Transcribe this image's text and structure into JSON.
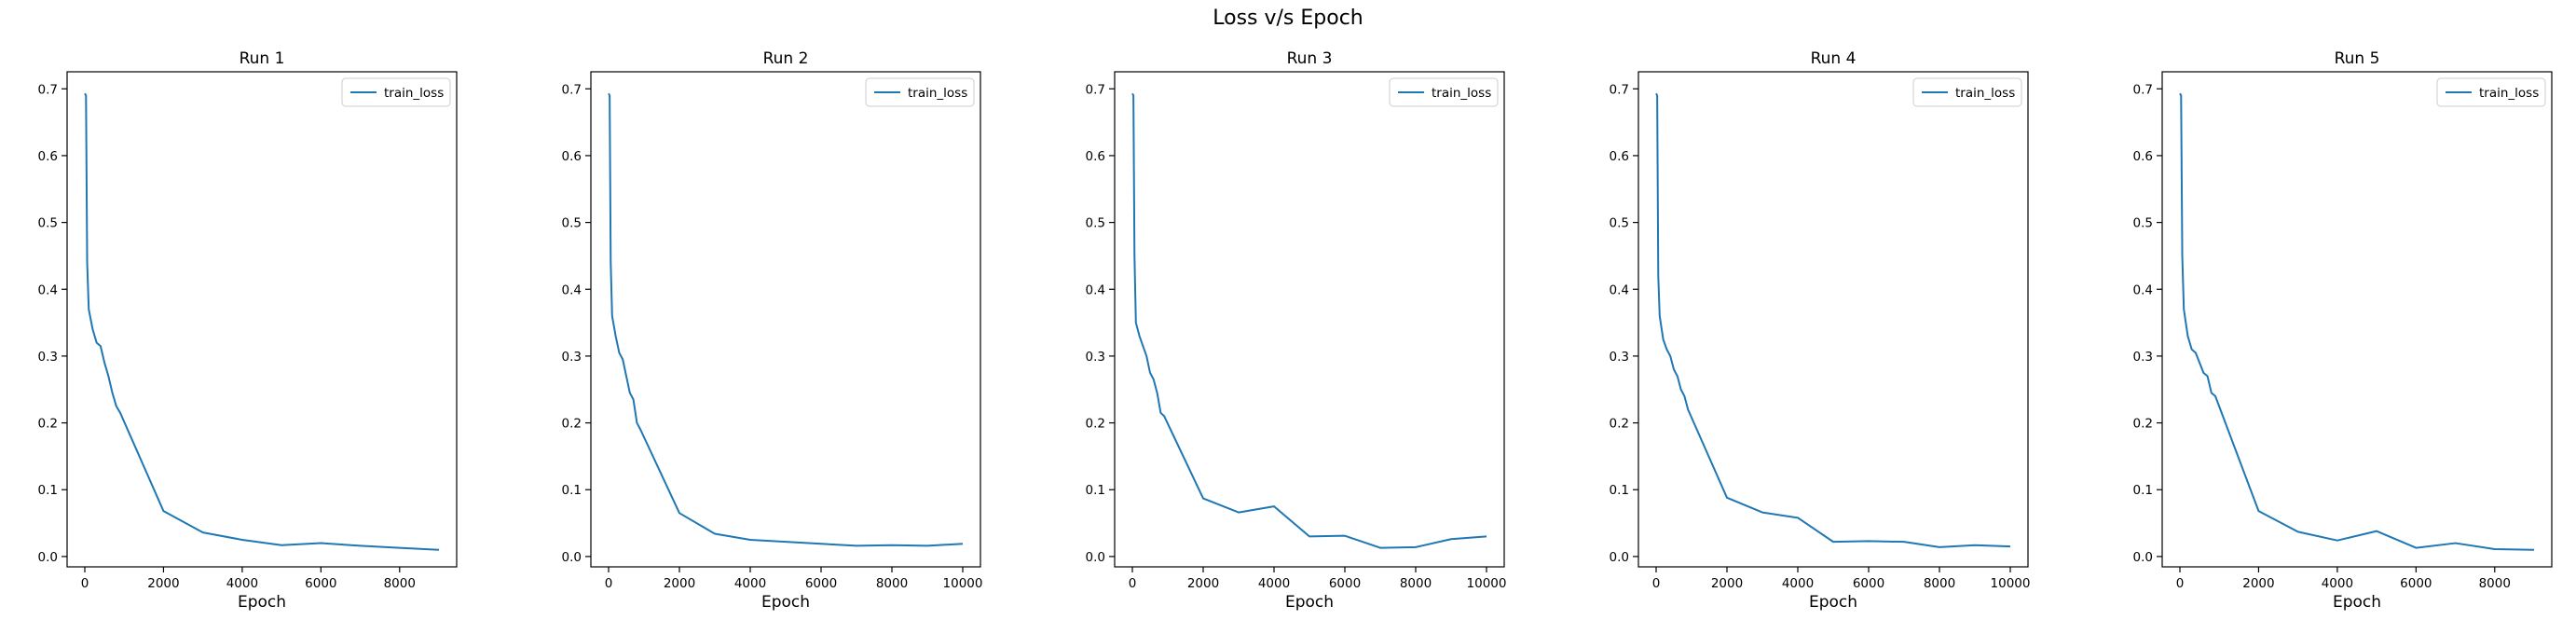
{
  "figure": {
    "title": "Loss v/s Epoch"
  },
  "colors": {
    "series": "#1f77b4",
    "axes": "#000000",
    "legend_border": "#cccccc"
  },
  "chart_data": [
    {
      "type": "line",
      "title": "Run 1",
      "xlabel": "Epoch",
      "ylabel": "",
      "xlim": [
        -450,
        9450
      ],
      "ylim": [
        -0.0155,
        0.7255
      ],
      "xticks": [
        0,
        2000,
        4000,
        6000,
        8000
      ],
      "yticks": [
        0.0,
        0.1,
        0.2,
        0.3,
        0.4,
        0.5,
        0.6,
        0.7
      ],
      "xtick_labels": [
        "0",
        "2000",
        "4000",
        "6000",
        "8000"
      ],
      "ytick_labels": [
        "0.0",
        "0.1",
        "0.2",
        "0.3",
        "0.4",
        "0.5",
        "0.6",
        "0.7"
      ],
      "grid": false,
      "legend": "top-right",
      "series": [
        {
          "name": "train_loss",
          "x": [
            0,
            30,
            60,
            100,
            200,
            300,
            400,
            500,
            600,
            700,
            800,
            900,
            2000,
            3000,
            4000,
            5000,
            6000,
            7000,
            8000,
            9000
          ],
          "y": [
            0.693,
            0.69,
            0.44,
            0.37,
            0.34,
            0.32,
            0.315,
            0.29,
            0.27,
            0.245,
            0.225,
            0.215,
            0.068,
            0.036,
            0.025,
            0.017,
            0.02,
            0.016,
            0.013,
            0.01
          ]
        }
      ]
    },
    {
      "type": "line",
      "title": "Run 2",
      "xlabel": "Epoch",
      "ylabel": "",
      "xlim": [
        -500,
        10500
      ],
      "ylim": [
        -0.0155,
        0.7255
      ],
      "xticks": [
        0,
        2000,
        4000,
        6000,
        8000,
        10000
      ],
      "yticks": [
        0.0,
        0.1,
        0.2,
        0.3,
        0.4,
        0.5,
        0.6,
        0.7
      ],
      "xtick_labels": [
        "0",
        "2000",
        "4000",
        "6000",
        "8000",
        "10000"
      ],
      "ytick_labels": [
        "0.0",
        "0.1",
        "0.2",
        "0.3",
        "0.4",
        "0.5",
        "0.6",
        "0.7"
      ],
      "grid": false,
      "legend": "top-right",
      "series": [
        {
          "name": "train_loss",
          "x": [
            0,
            30,
            60,
            100,
            200,
            300,
            400,
            500,
            600,
            700,
            800,
            900,
            2000,
            3000,
            4000,
            5000,
            6000,
            7000,
            8000,
            9000,
            10000
          ],
          "y": [
            0.693,
            0.69,
            0.44,
            0.36,
            0.33,
            0.305,
            0.295,
            0.27,
            0.245,
            0.235,
            0.2,
            0.19,
            0.065,
            0.034,
            0.025,
            0.022,
            0.019,
            0.016,
            0.017,
            0.016,
            0.019
          ]
        }
      ]
    },
    {
      "type": "line",
      "title": "Run 3",
      "xlabel": "Epoch",
      "ylabel": "",
      "xlim": [
        -500,
        10500
      ],
      "ylim": [
        -0.0155,
        0.7255
      ],
      "xticks": [
        0,
        2000,
        4000,
        6000,
        8000,
        10000
      ],
      "yticks": [
        0.0,
        0.1,
        0.2,
        0.3,
        0.4,
        0.5,
        0.6,
        0.7
      ],
      "xtick_labels": [
        "0",
        "2000",
        "4000",
        "6000",
        "8000",
        "10000"
      ],
      "ytick_labels": [
        "0.0",
        "0.1",
        "0.2",
        "0.3",
        "0.4",
        "0.5",
        "0.6",
        "0.7"
      ],
      "grid": false,
      "legend": "top-right",
      "series": [
        {
          "name": "train_loss",
          "x": [
            0,
            30,
            60,
            100,
            200,
            300,
            400,
            500,
            600,
            700,
            800,
            900,
            2000,
            3000,
            4000,
            5000,
            6000,
            7000,
            8000,
            9000,
            10000
          ],
          "y": [
            0.693,
            0.69,
            0.45,
            0.35,
            0.33,
            0.315,
            0.3,
            0.275,
            0.265,
            0.245,
            0.215,
            0.21,
            0.087,
            0.066,
            0.075,
            0.03,
            0.031,
            0.013,
            0.014,
            0.026,
            0.03
          ]
        }
      ]
    },
    {
      "type": "line",
      "title": "Run 4",
      "xlabel": "Epoch",
      "ylabel": "",
      "xlim": [
        -500,
        10500
      ],
      "ylim": [
        -0.0155,
        0.7255
      ],
      "xticks": [
        0,
        2000,
        4000,
        6000,
        8000,
        10000
      ],
      "yticks": [
        0.0,
        0.1,
        0.2,
        0.3,
        0.4,
        0.5,
        0.6,
        0.7
      ],
      "xtick_labels": [
        "0",
        "2000",
        "4000",
        "6000",
        "8000",
        "10000"
      ],
      "ytick_labels": [
        "0.0",
        "0.1",
        "0.2",
        "0.3",
        "0.4",
        "0.5",
        "0.6",
        "0.7"
      ],
      "grid": false,
      "legend": "top-right",
      "series": [
        {
          "name": "train_loss",
          "x": [
            0,
            30,
            60,
            100,
            200,
            300,
            400,
            500,
            600,
            700,
            800,
            900,
            2000,
            3000,
            4000,
            5000,
            6000,
            7000,
            8000,
            9000,
            10000
          ],
          "y": [
            0.693,
            0.69,
            0.42,
            0.36,
            0.325,
            0.31,
            0.3,
            0.28,
            0.27,
            0.25,
            0.24,
            0.22,
            0.088,
            0.066,
            0.058,
            0.022,
            0.023,
            0.022,
            0.014,
            0.017,
            0.015
          ]
        }
      ]
    },
    {
      "type": "line",
      "title": "Run 5",
      "xlabel": "Epoch",
      "ylabel": "",
      "xlim": [
        -450,
        9450
      ],
      "ylim": [
        -0.0155,
        0.7255
      ],
      "xticks": [
        0,
        2000,
        4000,
        6000,
        8000
      ],
      "yticks": [
        0.0,
        0.1,
        0.2,
        0.3,
        0.4,
        0.5,
        0.6,
        0.7
      ],
      "xtick_labels": [
        "0",
        "2000",
        "4000",
        "6000",
        "8000"
      ],
      "ytick_labels": [
        "0.0",
        "0.1",
        "0.2",
        "0.3",
        "0.4",
        "0.5",
        "0.6",
        "0.7"
      ],
      "grid": false,
      "legend": "top-right",
      "series": [
        {
          "name": "train_loss",
          "x": [
            0,
            30,
            60,
            100,
            200,
            300,
            400,
            500,
            600,
            700,
            800,
            900,
            2000,
            3000,
            4000,
            5000,
            6000,
            7000,
            8000,
            9000
          ],
          "y": [
            0.693,
            0.69,
            0.45,
            0.37,
            0.33,
            0.31,
            0.305,
            0.29,
            0.275,
            0.27,
            0.245,
            0.24,
            0.068,
            0.037,
            0.024,
            0.038,
            0.013,
            0.02,
            0.011,
            0.01
          ]
        }
      ]
    }
  ]
}
